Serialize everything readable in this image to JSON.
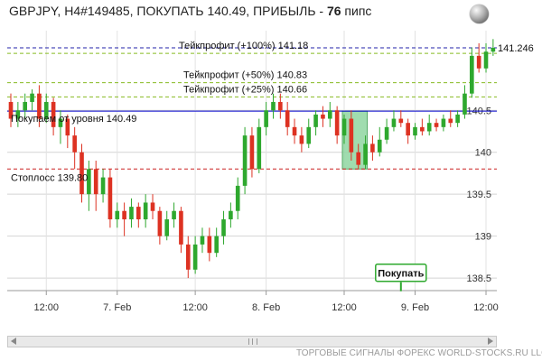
{
  "header": {
    "title_prefix": "GBPJPY, H4#149485, ПОКУПАТЬ 140.49, ПРИБЫЛЬ - ",
    "profit_value": "76",
    "profit_unit": " пипс"
  },
  "footer": {
    "text": "ТОРГОВЫЕ СИГНАЛЫ ФОРЕКС WORLD-STOCKS.RU LLC"
  },
  "icons": {
    "globe": "globe-icon",
    "scroll_left": "arrow-left-icon",
    "scroll_right": "arrow-right-icon",
    "scroll_grip": "scroll-grip-icon"
  },
  "colors": {
    "up": "#2ea82e",
    "down": "#dd3222",
    "entry": "#0000cc",
    "stop": "#cc2222",
    "tp": "#88bb22",
    "current": "#2222aa",
    "entry_zone": "#8fd6a1"
  },
  "chart_data": {
    "type": "candlestick",
    "symbol": "GBPJPY",
    "timeframe": "H4",
    "ylim": [
      138.35,
      141.45
    ],
    "y_ticks": [
      138.5,
      139,
      139.5,
      140,
      140.5
    ],
    "y_tick_labels": [
      "138.5",
      "139",
      "139.5",
      "140",
      "140.5"
    ],
    "current_price": 141.246,
    "current_price_label": "141.246",
    "x_labels": [
      {
        "label": "12:00",
        "bar": 5
      },
      {
        "label": "7. Feb",
        "bar": 15
      },
      {
        "label": "12:00",
        "bar": 26
      },
      {
        "label": "8. Feb",
        "bar": 36
      },
      {
        "label": "12:00",
        "bar": 47
      },
      {
        "label": "9. Feb",
        "bar": 57
      },
      {
        "label": "12:00",
        "bar": 67
      }
    ],
    "levels": [
      {
        "name": "entry",
        "price": 140.49,
        "label": "Покупаем от уровня 140.49",
        "style": "solid"
      },
      {
        "name": "stop",
        "price": 139.8,
        "label": "Стоплосс 139.80",
        "style": "dashed"
      },
      {
        "name": "tp25",
        "price": 140.66,
        "label": "Тейкпрофит (+25%) 140.66",
        "style": "dashed"
      },
      {
        "name": "tp50",
        "price": 140.83,
        "label": "Тейкпрофит (+50%) 140.83",
        "style": "dashed"
      },
      {
        "name": "tp100",
        "price": 141.18,
        "label": "Тейкпрофит (+100%) 141.18",
        "style": "dashed"
      }
    ],
    "entry_zone": {
      "from_bar": 47,
      "to_bar": 50,
      "low": 139.8,
      "high": 140.49
    },
    "signal": {
      "label": "Покупать",
      "bar": 55,
      "price": 138.45
    },
    "candles": [
      [
        140.6,
        140.4,
        140.7,
        140.3
      ],
      [
        140.4,
        140.5,
        140.6,
        140.3
      ],
      [
        140.5,
        140.6,
        140.7,
        140.4
      ],
      [
        140.6,
        140.7,
        140.75,
        140.5
      ],
      [
        140.7,
        140.4,
        140.8,
        140.3
      ],
      [
        140.4,
        140.6,
        140.7,
        140.35
      ],
      [
        140.6,
        140.3,
        140.65,
        140.2
      ],
      [
        140.3,
        140.4,
        140.5,
        140.1
      ],
      [
        140.4,
        140.2,
        140.45,
        140.05
      ],
      [
        140.2,
        140.0,
        140.3,
        139.8
      ],
      [
        140.0,
        139.5,
        140.1,
        139.4
      ],
      [
        139.5,
        139.8,
        139.9,
        139.3
      ],
      [
        139.8,
        139.5,
        139.9,
        139.3
      ],
      [
        139.5,
        139.7,
        139.8,
        139.4
      ],
      [
        139.7,
        139.2,
        139.8,
        139.1
      ],
      [
        139.2,
        139.3,
        139.4,
        139.1
      ],
      [
        139.3,
        139.2,
        139.4,
        139.0
      ],
      [
        139.2,
        139.35,
        139.45,
        139.1
      ],
      [
        139.35,
        139.2,
        139.4,
        139.1
      ],
      [
        139.2,
        139.4,
        139.5,
        139.1
      ],
      [
        139.4,
        139.3,
        139.5,
        139.2
      ],
      [
        139.3,
        139.0,
        139.35,
        138.9
      ],
      [
        139.0,
        139.2,
        139.3,
        138.95
      ],
      [
        139.2,
        139.3,
        139.4,
        139.1
      ],
      [
        139.3,
        138.9,
        139.35,
        138.8
      ],
      [
        138.9,
        138.6,
        139.0,
        138.5
      ],
      [
        138.6,
        138.9,
        139.0,
        138.55
      ],
      [
        138.9,
        139.0,
        139.1,
        138.8
      ],
      [
        139.0,
        138.8,
        139.1,
        138.7
      ],
      [
        138.8,
        139.0,
        139.1,
        138.75
      ],
      [
        139.0,
        139.2,
        139.3,
        138.9
      ],
      [
        139.2,
        139.3,
        139.4,
        139.1
      ],
      [
        139.3,
        139.6,
        139.7,
        139.2
      ],
      [
        139.6,
        140.2,
        140.3,
        139.5
      ],
      [
        140.2,
        139.8,
        140.3,
        139.7
      ],
      [
        139.8,
        140.3,
        140.4,
        139.75
      ],
      [
        140.3,
        140.5,
        140.6,
        140.2
      ],
      [
        140.5,
        140.6,
        140.7,
        140.4
      ],
      [
        140.6,
        140.5,
        140.7,
        140.4
      ],
      [
        140.5,
        140.3,
        140.6,
        140.2
      ],
      [
        140.3,
        140.2,
        140.4,
        140.1
      ],
      [
        140.2,
        140.1,
        140.3,
        140.0
      ],
      [
        140.1,
        140.3,
        140.4,
        140.05
      ],
      [
        140.3,
        140.45,
        140.5,
        140.2
      ],
      [
        140.45,
        140.4,
        140.55,
        140.3
      ],
      [
        140.4,
        140.5,
        140.6,
        140.3
      ],
      [
        140.5,
        140.2,
        140.55,
        140.1
      ],
      [
        140.2,
        140.4,
        140.45,
        140.1
      ],
      [
        140.4,
        140.0,
        140.5,
        139.9
      ],
      [
        140.0,
        139.85,
        140.1,
        139.8
      ],
      [
        139.85,
        140.1,
        140.2,
        139.8
      ],
      [
        140.1,
        140.0,
        140.2,
        139.9
      ],
      [
        140.0,
        140.15,
        140.3,
        139.95
      ],
      [
        140.15,
        140.3,
        140.4,
        140.1
      ],
      [
        140.3,
        140.4,
        140.5,
        140.25
      ],
      [
        140.4,
        140.35,
        140.5,
        140.3
      ],
      [
        140.35,
        140.2,
        140.4,
        140.1
      ],
      [
        140.2,
        140.3,
        140.35,
        140.15
      ],
      [
        140.3,
        140.25,
        140.4,
        140.2
      ],
      [
        140.25,
        140.35,
        140.45,
        140.2
      ],
      [
        140.35,
        140.3,
        140.4,
        140.25
      ],
      [
        140.3,
        140.4,
        140.45,
        140.25
      ],
      [
        140.4,
        140.35,
        140.5,
        140.3
      ],
      [
        140.35,
        140.45,
        140.5,
        140.3
      ],
      [
        140.45,
        140.7,
        140.8,
        140.4
      ],
      [
        140.7,
        141.15,
        141.25,
        140.65
      ],
      [
        141.15,
        141.0,
        141.3,
        140.95
      ],
      [
        141.0,
        141.2,
        141.3,
        140.95
      ],
      [
        141.2,
        141.246,
        141.35,
        141.15
      ]
    ]
  }
}
